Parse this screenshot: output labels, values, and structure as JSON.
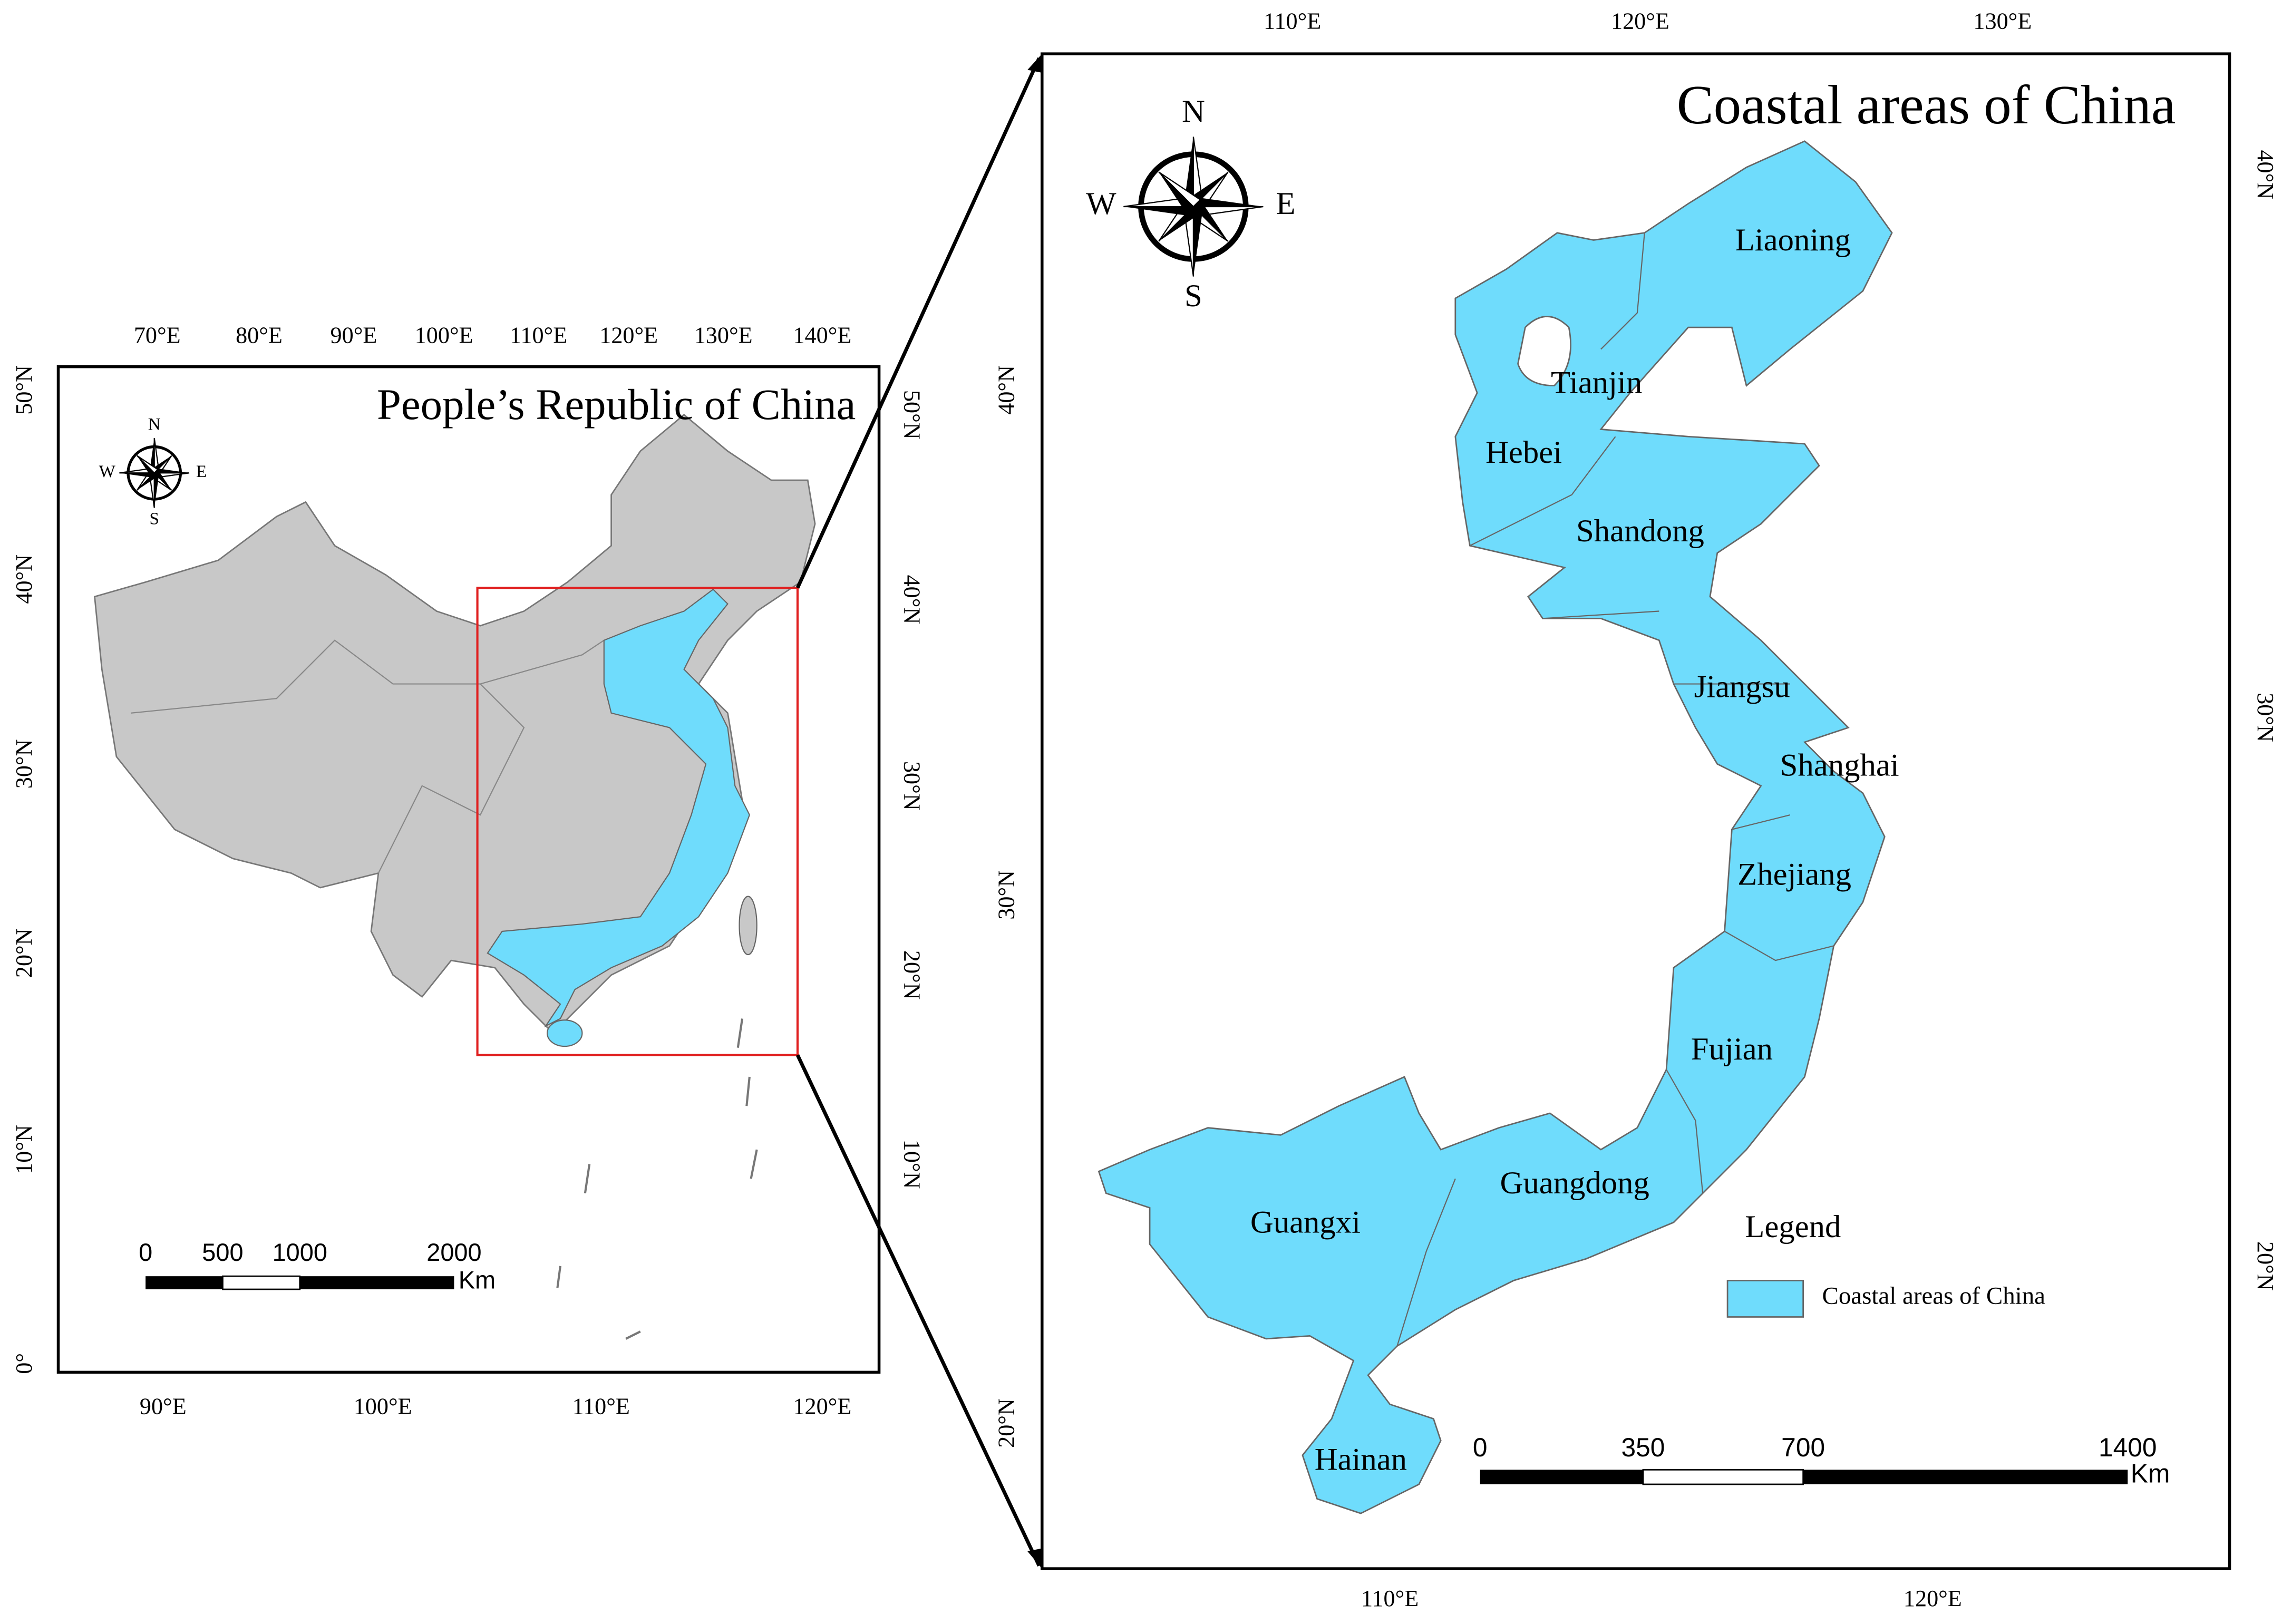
{
  "left_map": {
    "title": "People’s Republic of China",
    "top_ticks": [
      "70°E",
      "80°E",
      "90°E",
      "100°E",
      "110°E",
      "120°E",
      "130°E",
      "140°E"
    ],
    "bottom_ticks": [
      "90°E",
      "100°E",
      "110°E",
      "120°E"
    ],
    "left_ticks": [
      "50°N",
      "40°N",
      "30°N",
      "20°N",
      "10°N",
      "0°"
    ],
    "right_ticks": [
      "50°N",
      "40°N",
      "30°N",
      "20°N",
      "10°N"
    ],
    "compass": [
      "N",
      "E",
      "S",
      "W"
    ],
    "scale_bar": {
      "labels": [
        "0",
        "500",
        "1000",
        "2000"
      ],
      "unit": "Km"
    }
  },
  "right_map": {
    "title": "Coastal areas of China",
    "top_ticks": [
      "110°E",
      "120°E",
      "130°E"
    ],
    "bottom_ticks": [
      "110°E",
      "120°E"
    ],
    "left_ticks": [
      "40°N",
      "30°N",
      "20°N"
    ],
    "right_ticks": [
      "40°N",
      "30°N",
      "20°N"
    ],
    "compass": [
      "N",
      "E",
      "S",
      "W"
    ],
    "provinces": [
      "Liaoning",
      "Tianjin",
      "Hebei",
      "Shandong",
      "Jiangsu",
      "Shanghai",
      "Zhejiang",
      "Fujian",
      "Guangdong",
      "Guangxi",
      "Hainan"
    ],
    "scale_bar": {
      "labels": [
        "0",
        "350",
        "700",
        "1400"
      ],
      "unit": "Km"
    },
    "legend": {
      "title": "Legend",
      "items": [
        "Coastal areas of China"
      ]
    }
  }
}
